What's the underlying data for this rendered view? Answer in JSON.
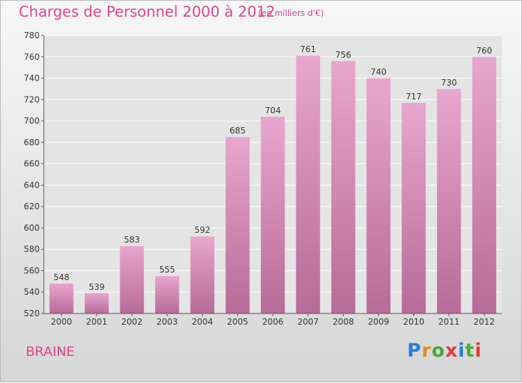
{
  "header": {
    "title": "Charges de Personnel 2000 à 2012",
    "unit_note": "(en milliers d'€)"
  },
  "commune": "BRAINE",
  "logo": {
    "text": "Proxiti",
    "letter_colors": [
      "#2a7fd4",
      "#e88c1e",
      "#4aa83a",
      "#e03a3a",
      "#2a7fd4",
      "#4aa83a",
      "#e03a3a"
    ]
  },
  "colors": {
    "bar_top": "#e8a6ce",
    "bar_bottom": "#b76b98",
    "text_pink": "#e0458f",
    "grid": "#ffffff"
  },
  "chart_data": {
    "type": "bar",
    "title": "Charges de Personnel 2000 à 2012",
    "subtitle": "(en milliers d'€)",
    "categories": [
      "2000",
      "2001",
      "2002",
      "2003",
      "2004",
      "2005",
      "2006",
      "2007",
      "2008",
      "2009",
      "2010",
      "2011",
      "2012"
    ],
    "values": [
      548,
      539,
      583,
      555,
      592,
      685,
      704,
      761,
      756,
      740,
      717,
      730,
      760
    ],
    "ylim": [
      520,
      780
    ],
    "yticks": [
      520,
      540,
      560,
      580,
      600,
      620,
      640,
      660,
      680,
      700,
      720,
      740,
      760,
      780
    ],
    "grid": true,
    "data_labels": true
  }
}
